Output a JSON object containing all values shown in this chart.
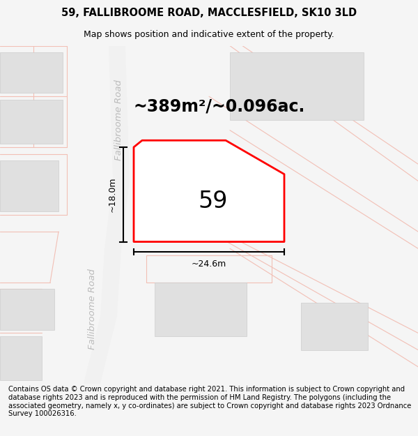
{
  "title": "59, FALLIBROOME ROAD, MACCLESFIELD, SK10 3LD",
  "subtitle": "Map shows position and indicative extent of the property.",
  "area_label": "~389m²/~0.096ac.",
  "property_number": "59",
  "width_label": "~24.6m",
  "height_label": "~18.0m",
  "footer_text": "Contains OS data © Crown copyright and database right 2021. This information is subject to Crown copyright and database rights 2023 and is reproduced with the permission of HM Land Registry. The polygons (including the associated geometry, namely x, y co-ordinates) are subject to Crown copyright and database rights 2023 Ordnance Survey 100026316.",
  "bg_color": "#f5f5f5",
  "map_bg": "#ffffff",
  "road_color_light": "#f2bfb5",
  "building_color": "#e0e0e0",
  "building_edge": "#cccccc",
  "property_fill": "#ffffff",
  "property_edge": "#ff0000",
  "road_fill": "#eeeeee",
  "road_edge": "#dddddd",
  "dim_line_color": "#000000",
  "title_fontsize": 10.5,
  "subtitle_fontsize": 9,
  "area_fontsize": 17,
  "number_fontsize": 24,
  "dim_fontsize": 9,
  "footer_fontsize": 7.2,
  "road_label_color": "#bbbbbb",
  "road_label_fontsize": 9.5,
  "separator_color": "#cccccc"
}
